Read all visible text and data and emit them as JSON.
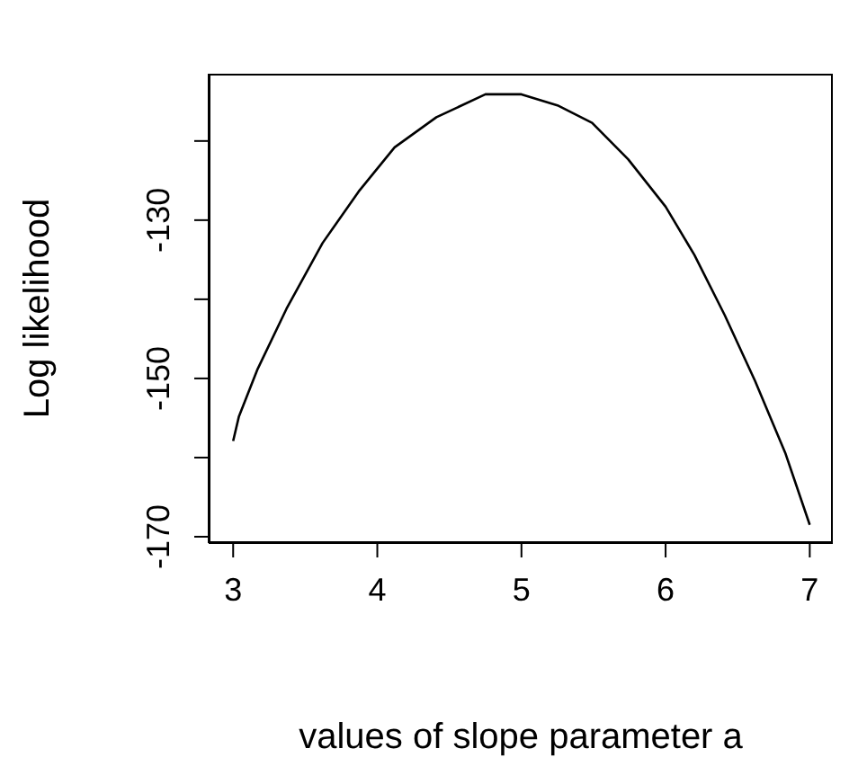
{
  "chart_data": {
    "type": "line",
    "xlabel": "values of slope parameter a",
    "ylabel": "Log likelihood",
    "x": [
      3,
      3.04,
      3.17,
      3.37,
      3.62,
      3.87,
      4.12,
      4.41,
      4.75,
      5.0,
      5.25,
      5.49,
      5.74,
      6.0,
      6.2,
      6.41,
      6.62,
      6.83,
      7.0
    ],
    "series": [
      {
        "color": "#000000",
        "values": [
          -157.9,
          -154.8,
          -148.8,
          -141.2,
          -132.9,
          -126.4,
          -120.8,
          -117.0,
          -114.1,
          -114.1,
          -115.5,
          -117.7,
          -122.3,
          -128.3,
          -134.4,
          -142.0,
          -150.3,
          -159.4,
          -168.5
        ]
      }
    ],
    "xlim": [
      2.83,
      7.16
    ],
    "ylim": [
      -170.8,
      -111.5
    ],
    "xticks": [
      3,
      4,
      5,
      6,
      7
    ],
    "yticks": [
      {
        "value": -120,
        "label": null
      },
      -130,
      {
        "value": -140,
        "label": null
      },
      -150,
      {
        "value": -160,
        "label": null
      },
      -170
    ],
    "marker": "none",
    "line_style": "solid",
    "grid": false,
    "legend": false
  }
}
